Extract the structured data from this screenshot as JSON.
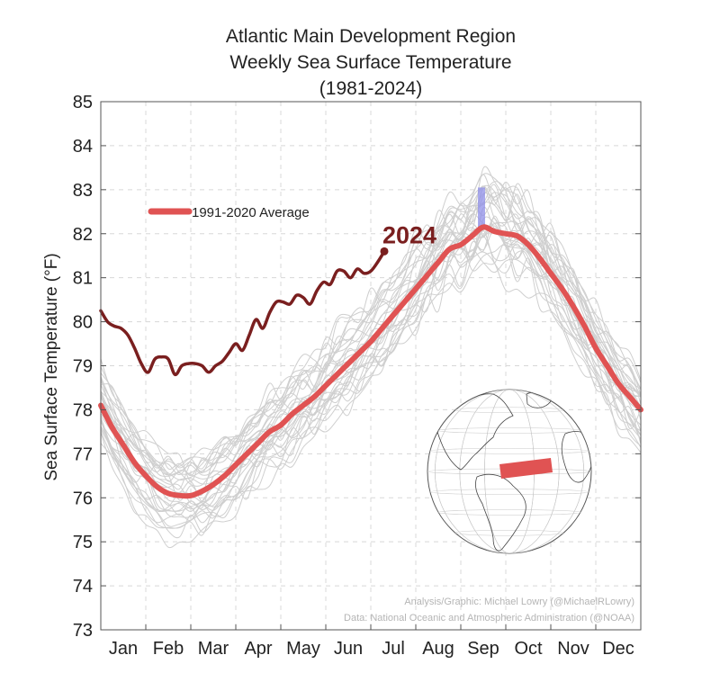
{
  "chart_data": {
    "type": "line",
    "title": "Atlantic Main Development Region",
    "subtitle": "Weekly Sea Surface Temperature",
    "period": "(1981-2024)",
    "ylabel": "Sea Surface Temperature (°F)",
    "xlabel": "",
    "ylim": [
      73,
      85
    ],
    "yticks": [
      73,
      74,
      75,
      76,
      77,
      78,
      79,
      80,
      81,
      82,
      83,
      84,
      85
    ],
    "xlim": [
      0,
      12
    ],
    "month_labels": [
      "Jan",
      "Feb",
      "Mar",
      "Apr",
      "May",
      "Jun",
      "Jul",
      "Aug",
      "Sep",
      "Oct",
      "Nov",
      "Dec"
    ],
    "grid": true,
    "legend": {
      "label": "1991-2020 Average",
      "placement": "top-left"
    },
    "series": [
      {
        "name": "1991-2020 Average",
        "color": "#e05353",
        "x": [
          0.0,
          0.25,
          0.5,
          0.75,
          1.0,
          1.25,
          1.5,
          1.75,
          2.0,
          2.25,
          2.5,
          2.75,
          3.0,
          3.25,
          3.5,
          3.75,
          4.0,
          4.25,
          4.5,
          4.75,
          5.0,
          5.25,
          5.5,
          5.75,
          6.0,
          6.25,
          6.5,
          6.75,
          7.0,
          7.25,
          7.5,
          7.75,
          8.0,
          8.25,
          8.5,
          8.75,
          9.0,
          9.25,
          9.5,
          9.75,
          10.0,
          10.25,
          10.5,
          10.75,
          11.0,
          11.25,
          11.5,
          11.75,
          12.0
        ],
        "y": [
          78.1,
          77.6,
          77.2,
          76.8,
          76.5,
          76.25,
          76.1,
          76.05,
          76.05,
          76.15,
          76.3,
          76.5,
          76.75,
          77.0,
          77.25,
          77.5,
          77.65,
          77.9,
          78.1,
          78.3,
          78.55,
          78.8,
          79.05,
          79.3,
          79.55,
          79.85,
          80.15,
          80.45,
          80.75,
          81.05,
          81.35,
          81.65,
          81.75,
          81.95,
          82.15,
          82.05,
          82.0,
          81.95,
          81.75,
          81.45,
          81.1,
          80.75,
          80.35,
          79.9,
          79.4,
          79.0,
          78.6,
          78.3,
          78.0
        ]
      },
      {
        "name": "2024",
        "color": "#7a1f1f",
        "x": [
          0.0,
          0.15,
          0.3,
          0.45,
          0.6,
          0.75,
          0.9,
          1.05,
          1.2,
          1.35,
          1.5,
          1.65,
          1.8,
          1.95,
          2.1,
          2.25,
          2.4,
          2.55,
          2.7,
          2.85,
          3.0,
          3.15,
          3.3,
          3.45,
          3.6,
          3.75,
          3.9,
          4.05,
          4.2,
          4.35,
          4.5,
          4.65,
          4.8,
          4.95,
          5.1,
          5.25,
          5.4,
          5.55,
          5.7,
          5.85,
          6.0,
          6.15,
          6.3
        ],
        "y": [
          80.25,
          80.0,
          79.9,
          79.85,
          79.7,
          79.4,
          79.05,
          78.85,
          79.15,
          79.2,
          79.15,
          78.8,
          79.0,
          79.05,
          79.05,
          79.0,
          78.85,
          79.0,
          79.1,
          79.3,
          79.5,
          79.35,
          79.7,
          80.05,
          79.85,
          80.2,
          80.45,
          80.45,
          80.4,
          80.6,
          80.55,
          80.4,
          80.7,
          80.9,
          80.85,
          81.15,
          81.15,
          81.0,
          81.2,
          81.1,
          81.15,
          81.35,
          81.6
        ]
      }
    ],
    "annotations": {
      "series_2024_label": "2024",
      "credit_line_1": "Analysis/Graphic: Michael Lowry (@MichaelRLowry)",
      "credit_line_2": "Data: National Oceanic and Atmospheric Administration (@NOAA)"
    },
    "colors": {
      "average": "#e05353",
      "current_year": "#7a1f1f",
      "historical_years": "#cccccc",
      "today_marker": "#8f8fe8",
      "mdr_box": "#e05353"
    }
  }
}
